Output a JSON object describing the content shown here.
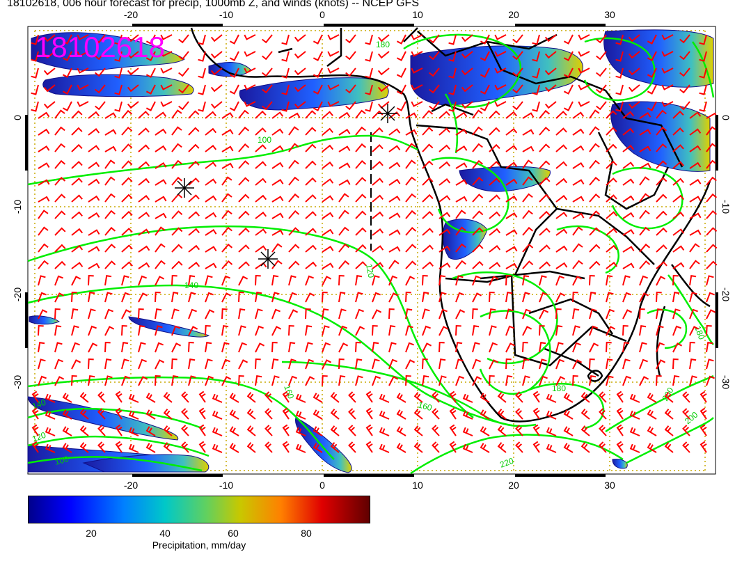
{
  "title": "18102618, 006 hour forecast for precip, 1000mb Z, and winds (knots) -- NCEP GFS",
  "stamp": "18102618",
  "colors": {
    "stamp": "#ff00ff",
    "contours": "#00ee00",
    "barbs": "#ff0000",
    "coast": "#000000",
    "grid": "#c8a800"
  },
  "map": {
    "lon_ticks": [
      "-20",
      "-10",
      "0",
      "10",
      "20",
      "30"
    ],
    "lat_ticks": [
      "0",
      "-10",
      "-20",
      "-30"
    ],
    "contour_labels": [
      "180",
      "100",
      "120",
      "140",
      "160",
      "160",
      "180",
      "200",
      "220",
      "180",
      "200",
      "140",
      "120",
      "100"
    ],
    "markers": [
      "asterisk",
      "asterisk",
      "asterisk"
    ]
  },
  "colorbar": {
    "ticks": [
      "20",
      "40",
      "60",
      "80"
    ],
    "label": "Precipitation, mm/day",
    "stops": [
      "#00008b",
      "#0000ff",
      "#0080ff",
      "#00c0c0",
      "#40d080",
      "#c0c000",
      "#ff8000",
      "#e00000",
      "#600000"
    ]
  }
}
